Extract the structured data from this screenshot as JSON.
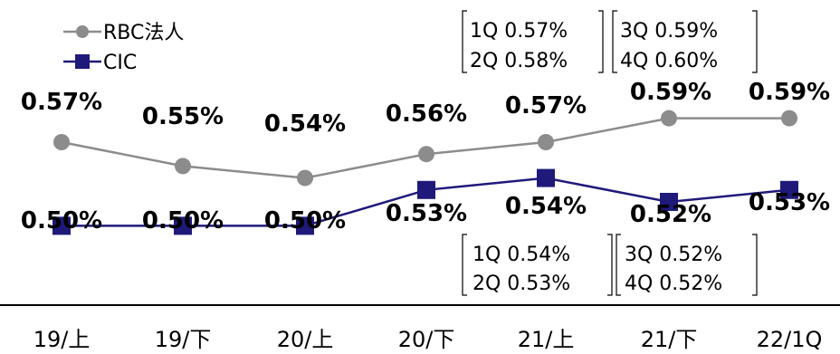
{
  "chart_data": {
    "type": "line",
    "categories": [
      "19/上",
      "19/下",
      "20/上",
      "20/下",
      "21/上",
      "21/下",
      "22/1Q"
    ],
    "series": [
      {
        "name": "RBC法人",
        "values": [
          0.57,
          0.55,
          0.54,
          0.56,
          0.57,
          0.59,
          0.59
        ],
        "labels": [
          "0.57%",
          "0.55%",
          "0.54%",
          "0.56%",
          "0.57%",
          "0.59%",
          "0.59%"
        ],
        "color": "#8c8c8c",
        "marker": "circle"
      },
      {
        "name": "CIC",
        "values": [
          0.5,
          0.5,
          0.5,
          0.53,
          0.54,
          0.52,
          0.53
        ],
        "labels": [
          "0.50%",
          "0.50%",
          "0.50%",
          "0.53%",
          "0.54%",
          "0.52%",
          "0.53%"
        ],
        "color": "#1f1a7a",
        "marker": "square"
      }
    ],
    "annotations": {
      "rbc_quarters": [
        "1Q 0.57%",
        "2Q 0.58%",
        "3Q 0.59%",
        "4Q 0.60%"
      ],
      "cic_quarters": [
        "1Q 0.54%",
        "2Q 0.53%",
        "3Q 0.52%",
        "4Q 0.52%"
      ]
    },
    "title": "",
    "xlabel": "",
    "ylabel": "",
    "legend": "top-left",
    "grid": false
  }
}
